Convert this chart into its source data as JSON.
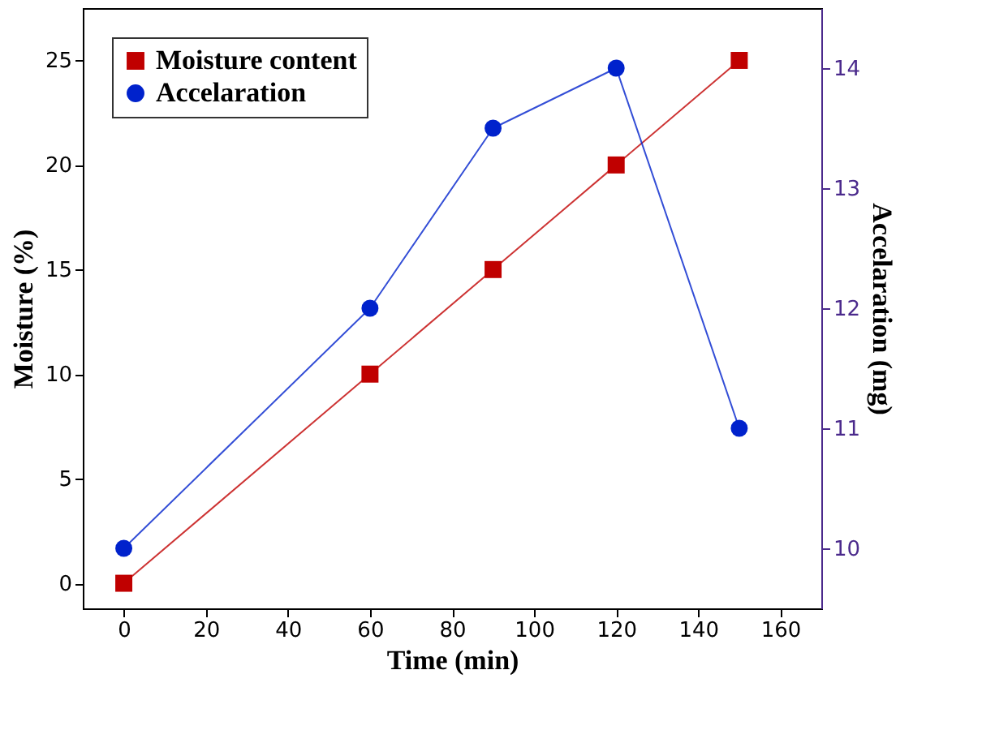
{
  "chart_data": {
    "type": "line",
    "xlabel": "Time (min)",
    "ylabel": "Moisture (%)",
    "y2label": "Accelaration (mg)",
    "x": [
      0,
      60,
      90,
      120,
      150
    ],
    "xlim": [
      -10,
      170
    ],
    "xticks": [
      0,
      20,
      40,
      60,
      80,
      100,
      120,
      140,
      160
    ],
    "ylim": [
      -1.2,
      27.5
    ],
    "yticks": [
      0,
      5,
      10,
      15,
      20,
      25
    ],
    "y2lim": [
      9.5,
      14.5
    ],
    "y2ticks": [
      10,
      11,
      12,
      13,
      14
    ],
    "legend": "top left",
    "grid": false,
    "series": [
      {
        "name": "Moisture content",
        "color": "#c00000",
        "marker": "square",
        "values": [
          0,
          10,
          15,
          20,
          25
        ]
      },
      {
        "name": "Accelaration",
        "color": "#0022cc",
        "marker": "circle",
        "axis": "y2",
        "values": [
          10,
          12,
          13.5,
          14,
          11
        ]
      }
    ]
  }
}
